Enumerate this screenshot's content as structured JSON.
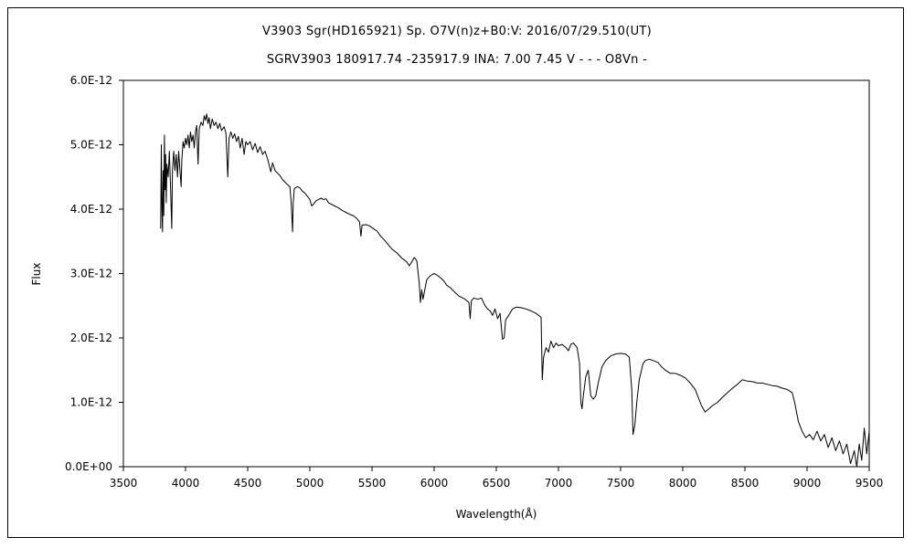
{
  "chart_data": {
    "type": "line",
    "title": "V3903 Sgr(HD165921)   Sp. O7V(n)z+B0:V:   2016/07/29.510(UT)",
    "subtitle": "SGRV3903 180917.74 -235917.9 INA: 7.00 7.45 V - - - O8Vn -",
    "xlabel": "Wavelength(Å)",
    "ylabel": "Flux",
    "xlim": [
      3500,
      9500
    ],
    "ylim": [
      0,
      6e-12
    ],
    "x_ticks": [
      "3500",
      "4000",
      "4500",
      "5000",
      "5500",
      "6000",
      "6500",
      "7000",
      "7500",
      "8000",
      "8500",
      "9000",
      "9500"
    ],
    "y_ticks": [
      "0.0E+00",
      "1.0E-12",
      "2.0E-12",
      "3.0E-12",
      "4.0E-12",
      "5.0E-12",
      "6.0E-12"
    ],
    "grid": false,
    "series": [
      {
        "color": "#000000",
        "points": [
          [
            3800,
            3.7e-12
          ],
          [
            3805,
            5e-12
          ],
          [
            3810,
            4e-12
          ],
          [
            3815,
            3.65e-12
          ],
          [
            3820,
            4.6e-12
          ],
          [
            3825,
            3.9e-12
          ],
          [
            3830,
            5.15e-12
          ],
          [
            3835,
            4.3e-12
          ],
          [
            3840,
            4.85e-12
          ],
          [
            3845,
            4.1e-12
          ],
          [
            3850,
            4.7e-12
          ],
          [
            3860,
            4.5e-12
          ],
          [
            3870,
            4.9e-12
          ],
          [
            3880,
            4.3e-12
          ],
          [
            3889,
            3.7e-12
          ],
          [
            3895,
            4.6e-12
          ],
          [
            3905,
            4.9e-12
          ],
          [
            3915,
            4.6e-12
          ],
          [
            3925,
            4.85e-12
          ],
          [
            3935,
            4.5e-12
          ],
          [
            3945,
            4.9e-12
          ],
          [
            3955,
            4.6e-12
          ],
          [
            3965,
            4.35e-12
          ],
          [
            3970,
            4.75e-12
          ],
          [
            3980,
            5.05e-12
          ],
          [
            3990,
            4.95e-12
          ],
          [
            4000,
            5.1e-12
          ],
          [
            4010,
            5e-12
          ],
          [
            4020,
            5.15e-12
          ],
          [
            4030,
            4.95e-12
          ],
          [
            4040,
            5.2e-12
          ],
          [
            4050,
            5.05e-12
          ],
          [
            4060,
            5.15e-12
          ],
          [
            4070,
            4.95e-12
          ],
          [
            4080,
            5.2e-12
          ],
          [
            4090,
            5.3e-12
          ],
          [
            4101,
            4.7e-12
          ],
          [
            4110,
            5.25e-12
          ],
          [
            4125,
            5.35e-12
          ],
          [
            4140,
            5.3e-12
          ],
          [
            4150,
            5.45e-12
          ],
          [
            4160,
            5.38e-12
          ],
          [
            4170,
            5.48e-12
          ],
          [
            4180,
            5.33e-12
          ],
          [
            4190,
            5.42e-12
          ],
          [
            4200,
            5.25e-12
          ],
          [
            4215,
            5.4e-12
          ],
          [
            4230,
            5.3e-12
          ],
          [
            4245,
            5.35e-12
          ],
          [
            4260,
            5.25e-12
          ],
          [
            4275,
            5.33e-12
          ],
          [
            4290,
            5.22e-12
          ],
          [
            4310,
            5.28e-12
          ],
          [
            4325,
            5.18e-12
          ],
          [
            4340,
            4.5e-12
          ],
          [
            4350,
            5.1e-12
          ],
          [
            4365,
            5.2e-12
          ],
          [
            4380,
            5.1e-12
          ],
          [
            4395,
            5.17e-12
          ],
          [
            4410,
            5.05e-12
          ],
          [
            4425,
            5.13e-12
          ],
          [
            4440,
            4.95e-12
          ],
          [
            4455,
            5.1e-12
          ],
          [
            4471,
            4.85e-12
          ],
          [
            4485,
            5.05e-12
          ],
          [
            4500,
            5e-12
          ],
          [
            4520,
            5.05e-12
          ],
          [
            4540,
            4.92e-12
          ],
          [
            4560,
            5.02e-12
          ],
          [
            4580,
            4.88e-12
          ],
          [
            4600,
            4.97e-12
          ],
          [
            4620,
            4.85e-12
          ],
          [
            4640,
            4.9e-12
          ],
          [
            4660,
            4.78e-12
          ],
          [
            4686,
            4.58e-12
          ],
          [
            4700,
            4.72e-12
          ],
          [
            4720,
            4.6e-12
          ],
          [
            4740,
            4.56e-12
          ],
          [
            4760,
            4.52e-12
          ],
          [
            4780,
            4.46e-12
          ],
          [
            4800,
            4.42e-12
          ],
          [
            4820,
            4.38e-12
          ],
          [
            4840,
            4.35e-12
          ],
          [
            4850,
            4.1e-12
          ],
          [
            4861,
            3.65e-12
          ],
          [
            4866,
            4.1e-12
          ],
          [
            4875,
            4.32e-12
          ],
          [
            4900,
            4.35e-12
          ],
          [
            4920,
            4.33e-12
          ],
          [
            4940,
            4.28e-12
          ],
          [
            4960,
            4.25e-12
          ],
          [
            4980,
            4.2e-12
          ],
          [
            5000,
            4.15e-12
          ],
          [
            5015,
            4.05e-12
          ],
          [
            5030,
            4.08e-12
          ],
          [
            5050,
            4.13e-12
          ],
          [
            5070,
            4.15e-12
          ],
          [
            5090,
            4.17e-12
          ],
          [
            5110,
            4.15e-12
          ],
          [
            5130,
            4.16e-12
          ],
          [
            5150,
            4.1e-12
          ],
          [
            5170,
            4.08e-12
          ],
          [
            5200,
            4.05e-12
          ],
          [
            5230,
            4.02e-12
          ],
          [
            5260,
            3.98e-12
          ],
          [
            5290,
            3.95e-12
          ],
          [
            5320,
            3.92e-12
          ],
          [
            5350,
            3.9e-12
          ],
          [
            5380,
            3.85e-12
          ],
          [
            5400,
            3.8e-12
          ],
          [
            5411,
            3.58e-12
          ],
          [
            5420,
            3.75e-12
          ],
          [
            5450,
            3.76e-12
          ],
          [
            5480,
            3.74e-12
          ],
          [
            5510,
            3.7e-12
          ],
          [
            5540,
            3.66e-12
          ],
          [
            5570,
            3.58e-12
          ],
          [
            5600,
            3.52e-12
          ],
          [
            5630,
            3.45e-12
          ],
          [
            5660,
            3.38e-12
          ],
          [
            5700,
            3.32e-12
          ],
          [
            5740,
            3.24e-12
          ],
          [
            5780,
            3.18e-12
          ],
          [
            5800,
            3.12e-12
          ],
          [
            5820,
            3.18e-12
          ],
          [
            5840,
            3.25e-12
          ],
          [
            5860,
            3.2e-12
          ],
          [
            5880,
            2.85e-12
          ],
          [
            5890,
            2.55e-12
          ],
          [
            5900,
            2.75e-12
          ],
          [
            5910,
            2.6e-12
          ],
          [
            5925,
            2.75e-12
          ],
          [
            5940,
            2.9e-12
          ],
          [
            5960,
            2.95e-12
          ],
          [
            5980,
            2.98e-12
          ],
          [
            6000,
            3e-12
          ],
          [
            6020,
            2.98e-12
          ],
          [
            6040,
            2.95e-12
          ],
          [
            6060,
            2.92e-12
          ],
          [
            6080,
            2.88e-12
          ],
          [
            6100,
            2.82e-12
          ],
          [
            6130,
            2.78e-12
          ],
          [
            6160,
            2.72e-12
          ],
          [
            6200,
            2.65e-12
          ],
          [
            6250,
            2.6e-12
          ],
          [
            6280,
            2.55e-12
          ],
          [
            6290,
            2.3e-12
          ],
          [
            6300,
            2.58e-12
          ],
          [
            6320,
            2.62e-12
          ],
          [
            6350,
            2.6e-12
          ],
          [
            6380,
            2.62e-12
          ],
          [
            6410,
            2.5e-12
          ],
          [
            6430,
            2.45e-12
          ],
          [
            6450,
            2.42e-12
          ],
          [
            6470,
            2.35e-12
          ],
          [
            6490,
            2.45e-12
          ],
          [
            6510,
            2.3e-12
          ],
          [
            6530,
            2.38e-12
          ],
          [
            6550,
            1.98e-12
          ],
          [
            6563,
            2e-12
          ],
          [
            6575,
            2.28e-12
          ],
          [
            6600,
            2.35e-12
          ],
          [
            6630,
            2.45e-12
          ],
          [
            6660,
            2.48e-12
          ],
          [
            6700,
            2.47e-12
          ],
          [
            6740,
            2.45e-12
          ],
          [
            6780,
            2.42e-12
          ],
          [
            6820,
            2.38e-12
          ],
          [
            6860,
            2.32e-12
          ],
          [
            6870,
            1.35e-12
          ],
          [
            6880,
            1.7e-12
          ],
          [
            6900,
            1.85e-12
          ],
          [
            6920,
            1.78e-12
          ],
          [
            6940,
            1.95e-12
          ],
          [
            6960,
            1.85e-12
          ],
          [
            6980,
            1.92e-12
          ],
          [
            7000,
            1.88e-12
          ],
          [
            7030,
            1.9e-12
          ],
          [
            7060,
            1.85e-12
          ],
          [
            7080,
            1.8e-12
          ],
          [
            7100,
            1.9e-12
          ],
          [
            7120,
            1.92e-12
          ],
          [
            7150,
            1.85e-12
          ],
          [
            7170,
            1.6e-12
          ],
          [
            7180,
            1e-12
          ],
          [
            7190,
            9e-13
          ],
          [
            7200,
            1.1e-12
          ],
          [
            7220,
            1.4e-12
          ],
          [
            7240,
            1.5e-12
          ],
          [
            7260,
            1.1e-12
          ],
          [
            7280,
            1.05e-12
          ],
          [
            7300,
            1.1e-12
          ],
          [
            7320,
            1.3e-12
          ],
          [
            7350,
            1.55e-12
          ],
          [
            7380,
            1.65e-12
          ],
          [
            7420,
            1.72e-12
          ],
          [
            7460,
            1.75e-12
          ],
          [
            7500,
            1.76e-12
          ],
          [
            7540,
            1.75e-12
          ],
          [
            7570,
            1.7e-12
          ],
          [
            7590,
            1.2e-12
          ],
          [
            7600,
            5e-13
          ],
          [
            7615,
            6.5e-13
          ],
          [
            7630,
            1e-12
          ],
          [
            7650,
            1.35e-12
          ],
          [
            7680,
            1.6e-12
          ],
          [
            7700,
            1.65e-12
          ],
          [
            7730,
            1.67e-12
          ],
          [
            7760,
            1.65e-12
          ],
          [
            7800,
            1.62e-12
          ],
          [
            7830,
            1.55e-12
          ],
          [
            7860,
            1.5e-12
          ],
          [
            7900,
            1.45e-12
          ],
          [
            7940,
            1.45e-12
          ],
          [
            7980,
            1.42e-12
          ],
          [
            8020,
            1.38e-12
          ],
          [
            8060,
            1.3e-12
          ],
          [
            8100,
            1.2e-12
          ],
          [
            8150,
            9.5e-13
          ],
          [
            8180,
            8.5e-13
          ],
          [
            8210,
            9e-13
          ],
          [
            8240,
            9.5e-13
          ],
          [
            8280,
            1e-12
          ],
          [
            8320,
            1.08e-12
          ],
          [
            8360,
            1.15e-12
          ],
          [
            8400,
            1.22e-12
          ],
          [
            8440,
            1.28e-12
          ],
          [
            8480,
            1.35e-12
          ],
          [
            8520,
            1.33e-12
          ],
          [
            8560,
            1.32e-12
          ],
          [
            8600,
            1.3e-12
          ],
          [
            8640,
            1.3e-12
          ],
          [
            8680,
            1.28e-12
          ],
          [
            8720,
            1.26e-12
          ],
          [
            8760,
            1.25e-12
          ],
          [
            8800,
            1.22e-12
          ],
          [
            8840,
            1.2e-12
          ],
          [
            8880,
            1.15e-12
          ],
          [
            8900,
            1e-12
          ],
          [
            8930,
            7e-13
          ],
          [
            8960,
            5.5e-13
          ],
          [
            8990,
            4.5e-13
          ],
          [
            9020,
            5e-13
          ],
          [
            9050,
            4.2e-13
          ],
          [
            9080,
            5.5e-13
          ],
          [
            9110,
            4e-13
          ],
          [
            9140,
            5e-13
          ],
          [
            9170,
            3e-13
          ],
          [
            9200,
            4.5e-13
          ],
          [
            9230,
            2.5e-13
          ],
          [
            9260,
            4e-13
          ],
          [
            9290,
            2e-13
          ],
          [
            9320,
            3.5e-13
          ],
          [
            9350,
            5e-14
          ],
          [
            9380,
            2.5e-13
          ],
          [
            9400,
            0.0
          ],
          [
            9420,
            3.5e-13
          ],
          [
            9440,
            1e-13
          ],
          [
            9460,
            6e-13
          ],
          [
            9480,
            2e-13
          ],
          [
            9500,
            5.5e-13
          ]
        ]
      }
    ]
  }
}
